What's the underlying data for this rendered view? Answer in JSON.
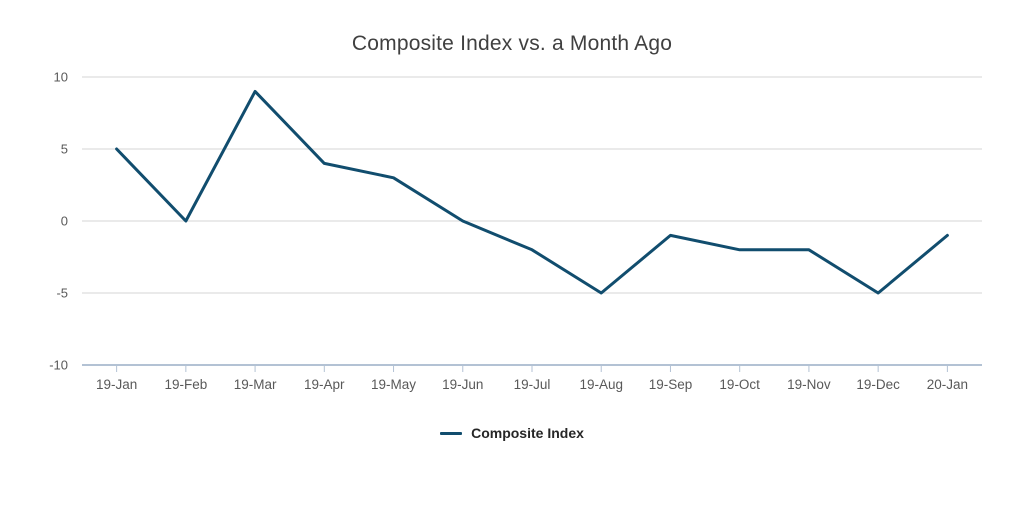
{
  "chart_data": {
    "type": "line",
    "title": "Composite Index vs. a Month Ago",
    "categories": [
      "19-Jan",
      "19-Feb",
      "19-Mar",
      "19-Apr",
      "19-May",
      "19-Jun",
      "19-Jul",
      "19-Aug",
      "19-Sep",
      "19-Oct",
      "19-Nov",
      "19-Dec",
      "20-Jan"
    ],
    "series": [
      {
        "name": "Composite Index",
        "values": [
          5,
          0,
          9,
          4,
          3,
          0,
          -2,
          -5,
          -1,
          -2,
          -2,
          -5,
          -1
        ]
      }
    ],
    "xlabel": "",
    "ylabel": "",
    "ylim": [
      -10,
      10
    ],
    "yticks": [
      10,
      5,
      0,
      -5,
      -10
    ],
    "grid": true,
    "legend_position": "bottom",
    "colors": {
      "line": "#114d6e",
      "gridline": "#d6d6d6",
      "axis_line": "#b3c2d4",
      "title_text": "#404040",
      "tick_label": "#595959",
      "legend_text": "#262626",
      "background": "#ffffff"
    }
  }
}
